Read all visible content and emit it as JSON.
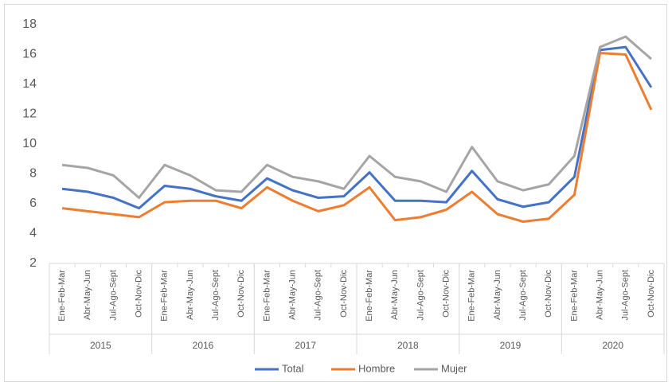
{
  "chart_data": {
    "type": "line",
    "groups": [
      {
        "label": "2015",
        "categories": [
          "Ene-Feb-Mar",
          "Abr-May-Jun",
          "Jul-Ago-Sept",
          "Oct-Nov-Dic"
        ]
      },
      {
        "label": "2016",
        "categories": [
          "Ene-Feb-Mar",
          "Abr-May-Jun",
          "Jul-Ago-Sept",
          "Oct-Nov-Dic"
        ]
      },
      {
        "label": "2017",
        "categories": [
          "Ene-Feb-Mar",
          "Abr-May-Jun",
          "Jul-Ago-Sept",
          "Oct-Nov-Dic"
        ]
      },
      {
        "label": "2018",
        "categories": [
          "Ene-Feb-Mar",
          "Abr-May-Jun",
          "Jul-Ago-Sept",
          "Oct-Nov-Dic"
        ]
      },
      {
        "label": "2019",
        "categories": [
          "Ene-Feb-Mar",
          "Abr-May-Jun",
          "Jul-Ago-Sept",
          "Oct-Nov-Dic"
        ]
      },
      {
        "label": "2020",
        "categories": [
          "Ene-Feb-Mar",
          "Abr-May-Jun",
          "Jul-Ago-Sept",
          "Oct-Nov-Dic"
        ]
      }
    ],
    "series": [
      {
        "name": "Total",
        "color": "#4472c4",
        "values": [
          7.0,
          6.8,
          6.4,
          5.7,
          7.2,
          7.0,
          6.5,
          6.2,
          7.7,
          6.9,
          6.4,
          6.5,
          8.1,
          6.2,
          6.2,
          6.1,
          8.2,
          6.3,
          5.8,
          6.1,
          7.8,
          16.3,
          16.5,
          13.8
        ]
      },
      {
        "name": "Hombre",
        "color": "#ed7d31",
        "values": [
          5.7,
          5.5,
          5.3,
          5.1,
          6.1,
          6.2,
          6.2,
          5.7,
          7.1,
          6.2,
          5.5,
          5.9,
          7.1,
          4.9,
          5.1,
          5.6,
          6.8,
          5.3,
          4.8,
          5.0,
          6.6,
          16.1,
          16.0,
          12.3
        ]
      },
      {
        "name": "Mujer",
        "color": "#a5a5a5",
        "values": [
          8.6,
          8.4,
          7.9,
          6.4,
          8.6,
          7.9,
          6.9,
          6.8,
          8.6,
          7.8,
          7.5,
          7.0,
          9.2,
          7.8,
          7.5,
          6.8,
          9.8,
          7.5,
          6.9,
          7.3,
          9.2,
          16.5,
          17.2,
          15.7
        ]
      }
    ],
    "ylim": [
      2,
      18
    ],
    "yticks": [
      2,
      4,
      6,
      8,
      10,
      12,
      14,
      16,
      18
    ],
    "grid": false,
    "legend": "bottom"
  }
}
